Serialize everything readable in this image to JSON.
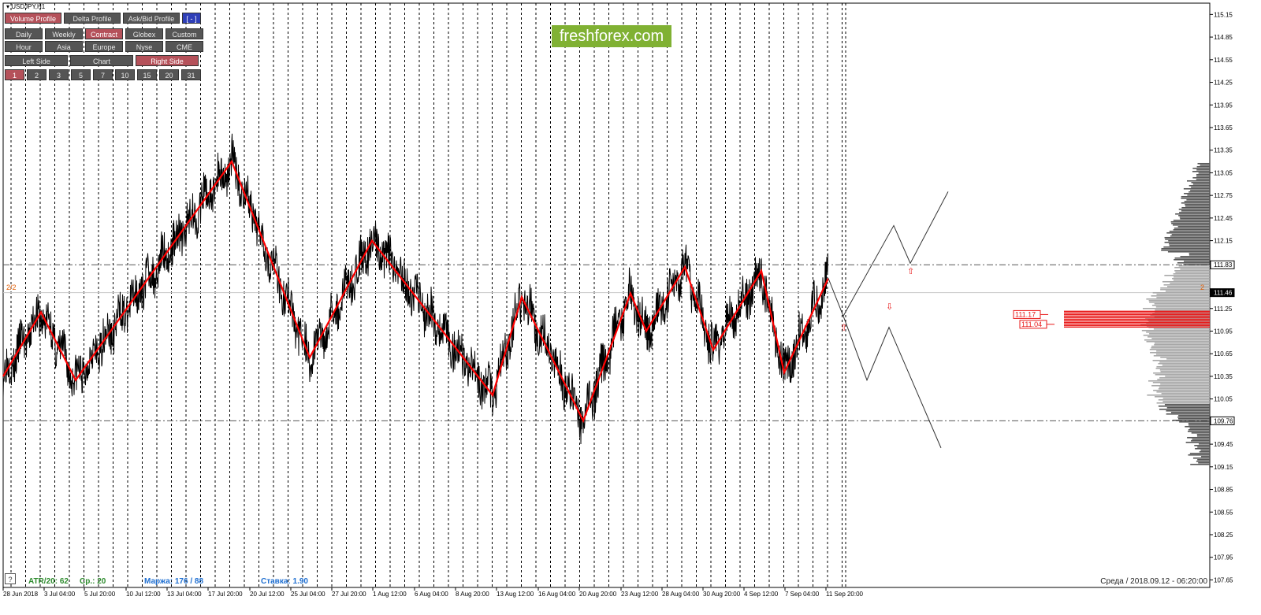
{
  "window": {
    "symbol_title": "USDJPY,H1"
  },
  "toolbar": {
    "rows": [
      [
        {
          "label": "Volume Profile",
          "active": true
        },
        {
          "label": "Delta Profile",
          "active": false
        },
        {
          "label": "Ask/Bid Profile",
          "active": false
        },
        {
          "label": "[ - ]",
          "active": false,
          "blue": true
        }
      ],
      [
        {
          "label": "Daily",
          "active": false
        },
        {
          "label": "Weekly",
          "active": false
        },
        {
          "label": "Contract",
          "active": true
        },
        {
          "label": "Globex",
          "active": false
        },
        {
          "label": "Custom",
          "active": false
        }
      ],
      [
        {
          "label": "Hour",
          "active": false
        },
        {
          "label": "Asia",
          "active": false
        },
        {
          "label": "Europe",
          "active": false
        },
        {
          "label": "Nyse",
          "active": false
        },
        {
          "label": "CME",
          "active": false
        }
      ],
      [
        {
          "label": "Left Side",
          "active": false
        },
        {
          "label": "Chart",
          "active": false
        },
        {
          "label": "Right Side",
          "active": true
        }
      ],
      [
        {
          "label": "1",
          "active": true
        },
        {
          "label": "2",
          "active": false
        },
        {
          "label": "3",
          "active": false
        },
        {
          "label": "5",
          "active": false
        },
        {
          "label": "7",
          "active": false
        },
        {
          "label": "10",
          "active": false
        },
        {
          "label": "15",
          "active": false
        },
        {
          "label": "20",
          "active": false
        },
        {
          "label": "31",
          "active": false
        }
      ]
    ]
  },
  "brand": {
    "logo_text": "freshforex.com",
    "logo_color": "#80b133"
  },
  "status": {
    "atr": "ATR/20: 62",
    "avg": "Ср.: 20",
    "margin": "Маржа: 176 / 88",
    "rate": "Ставка: 1.90",
    "server_time": "Среда  /  2018.09.12  -  06:20:00",
    "help": "?"
  },
  "colors": {
    "zigzag": "#ff0000",
    "price": "#000000",
    "profile": "#9a9a9a",
    "highlight": "#e81818",
    "green_text": "#2e8b2e",
    "blue_text": "#1f6fd1"
  },
  "chart_data": {
    "type": "line",
    "y_ticks": [
      "115.15",
      "114.85",
      "114.55",
      "114.25",
      "113.95",
      "113.65",
      "113.35",
      "113.05",
      "112.75",
      "112.45",
      "112.15",
      "111.83",
      "111.46",
      "111.25",
      "110.95",
      "110.65",
      "110.35",
      "110.05",
      "109.76",
      "109.45",
      "109.15",
      "108.85",
      "108.55",
      "108.25",
      "107.95",
      "107.65"
    ],
    "ylim": [
      107.55,
      115.3
    ],
    "x_labels": [
      "28 Jun 2018",
      "3 Jul 04:00",
      "5 Jul 20:00",
      "10 Jul 12:00",
      "13 Jul 04:00",
      "17 Jul 20:00",
      "20 Jul 12:00",
      "25 Jul 04:00",
      "27 Jul 20:00",
      "1 Aug 12:00",
      "6 Aug 04:00",
      "8 Aug 20:00",
      "13 Aug 12:00",
      "16 Aug 04:00",
      "20 Aug 20:00",
      "23 Aug 12:00",
      "28 Aug 04:00",
      "30 Aug 20:00",
      "4 Sep 12:00",
      "7 Sep 04:00",
      "11 Sep 20:00"
    ],
    "zigzag": [
      {
        "t": 0,
        "p": 110.35
      },
      {
        "t": 48,
        "p": 111.2
      },
      {
        "t": 92,
        "p": 110.3
      },
      {
        "t": 290,
        "p": 113.2
      },
      {
        "t": 389,
        "p": 110.6
      },
      {
        "t": 468,
        "p": 112.15
      },
      {
        "t": 621,
        "p": 110.1
      },
      {
        "t": 658,
        "p": 111.4
      },
      {
        "t": 736,
        "p": 109.76
      },
      {
        "t": 796,
        "p": 111.45
      },
      {
        "t": 816,
        "p": 110.95
      },
      {
        "t": 865,
        "p": 111.8
      },
      {
        "t": 901,
        "p": 110.7
      },
      {
        "t": 962,
        "p": 111.75
      },
      {
        "t": 991,
        "p": 110.4
      },
      {
        "t": 1047,
        "p": 111.65
      }
    ],
    "forecast_up": [
      {
        "t": 1066,
        "p": 111.15
      },
      {
        "t": 1130,
        "p": 112.35
      },
      {
        "t": 1151,
        "p": 111.85
      },
      {
        "t": 1199,
        "p": 112.8
      }
    ],
    "forecast_down": [
      {
        "t": 1047,
        "p": 111.65
      },
      {
        "t": 1066,
        "p": 111.15
      },
      {
        "t": 1096,
        "p": 110.3
      },
      {
        "t": 1124,
        "p": 111.0
      },
      {
        "t": 1190,
        "p": 109.4
      }
    ],
    "levels": [
      {
        "price": 111.83,
        "label": "111.83",
        "style": "dashdot"
      },
      {
        "price": 109.76,
        "label": "109.76",
        "style": "dashdot"
      },
      {
        "price": 111.46,
        "label": "111.46",
        "style": "solid",
        "current": true
      }
    ],
    "poc_labels": [
      {
        "label": "111.17",
        "price": 111.17
      },
      {
        "label": "111.04",
        "price": 111.04
      }
    ],
    "side_labels": {
      "left": "2/2",
      "right": "2"
    }
  }
}
